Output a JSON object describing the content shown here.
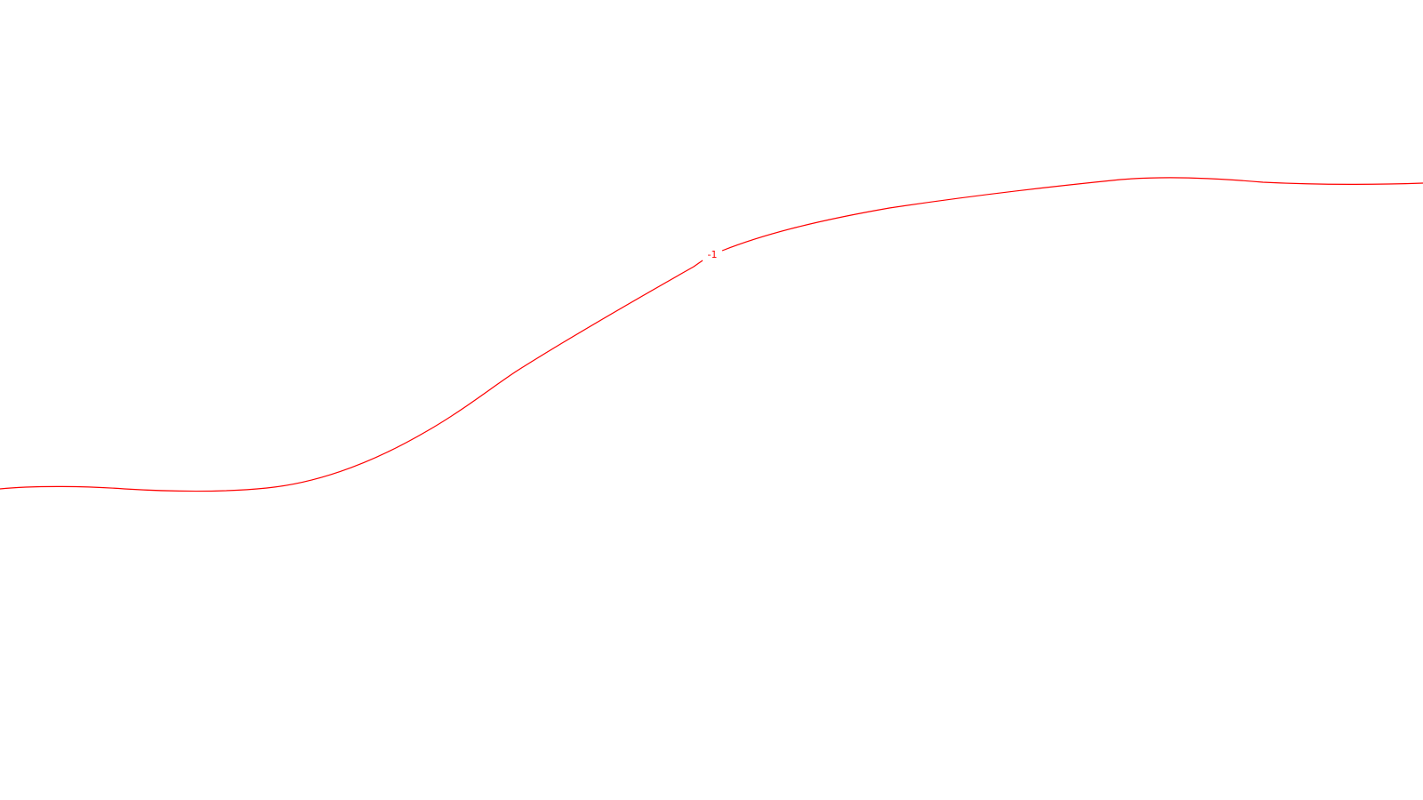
{
  "contour": {
    "label": "-1",
    "color": "#ff0000"
  }
}
